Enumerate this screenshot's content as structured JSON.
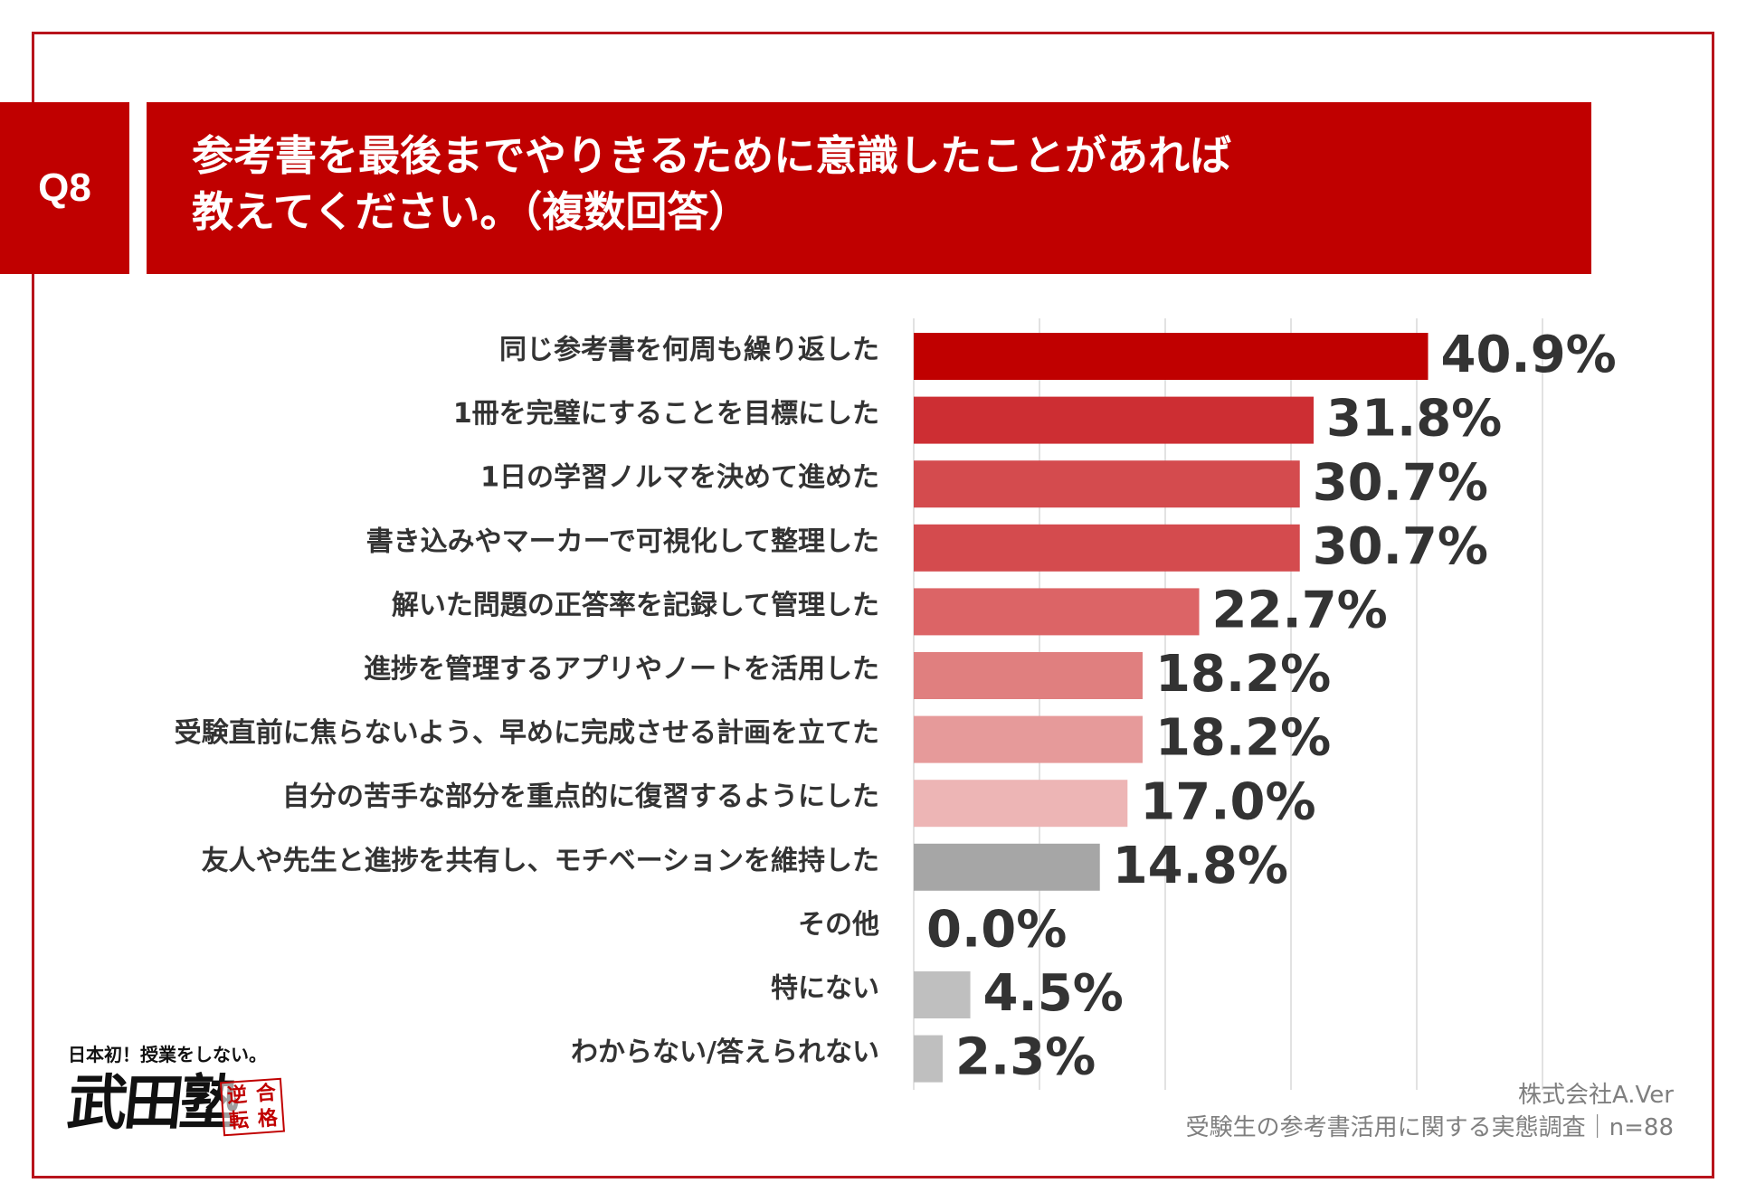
{
  "header": {
    "badge": "Q8",
    "title_line1": "参考書を最後までやりきるために意識したことがあれば",
    "title_line2": "教えてください。（複数回答）"
  },
  "chart_data": {
    "type": "bar",
    "orientation": "horizontal",
    "categories": [
      "同じ参考書を何周も繰り返した",
      "1冊を完璧にすることを目標にした",
      "1日の学習ノルマを決めて進めた",
      "書き込みやマーカーで可視化して整理した",
      "解いた問題の正答率を記録して管理した",
      "進捗を管理するアプリやノートを活用した",
      "受験直前に焦らないよう、早めに完成させる計画を立てた",
      "自分の苦手な部分を重点的に復習するようにした",
      "友人や先生と進捗を共有し、モチベーションを維持した",
      "その他",
      "特にない",
      "わからない/答えられない"
    ],
    "values": [
      40.9,
      31.8,
      30.7,
      30.7,
      22.7,
      18.2,
      18.2,
      17.0,
      14.8,
      0.0,
      4.5,
      2.3
    ],
    "value_labels": [
      "40.9%",
      "31.8%",
      "30.7%",
      "30.7%",
      "22.7%",
      "18.2%",
      "18.2%",
      "17.0%",
      "14.8%",
      "0.0%",
      "4.5%",
      "2.3%"
    ],
    "colors": [
      "#c00000",
      "#cd2e33",
      "#d44b4e",
      "#d44b4e",
      "#dc6466",
      "#e07f7f",
      "#e69a9a",
      "#edb5b5",
      "#a6a6a6",
      "#a6a6a6",
      "#bfbfbf",
      "#bfbfbf"
    ],
    "xlim": [
      0,
      50
    ],
    "grid": true
  },
  "source": {
    "company": "株式会社A.Ver",
    "survey": "受験生の参考書活用に関する実態調査｜n=88"
  },
  "logo": {
    "tagline": "日本初！授業をしない。",
    "name": "武田塾",
    "seal": [
      "逆",
      "合",
      "転",
      "格"
    ]
  }
}
